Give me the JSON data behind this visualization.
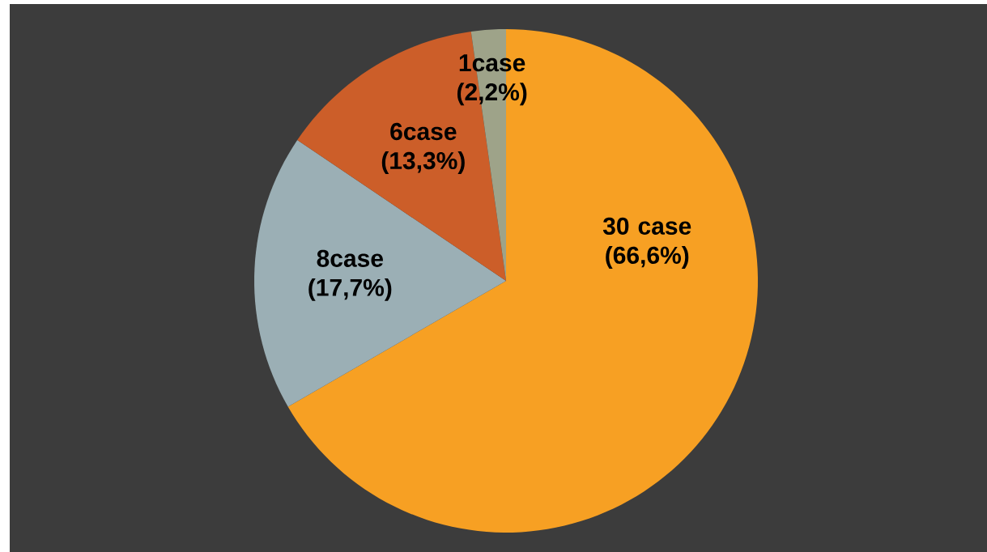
{
  "chart_data": {
    "type": "pie",
    "categories": [
      null,
      null,
      null,
      null
    ],
    "values": [
      30,
      8,
      6,
      1
    ],
    "colors": [
      "#f7a023",
      "#9bafb5",
      "#cc5e29",
      "#9ea389"
    ],
    "value_labels": [
      "30 case (66,6%)",
      "8case (17,7%)",
      "6case (13,3%)",
      "1case (2,2%)"
    ]
  }
}
